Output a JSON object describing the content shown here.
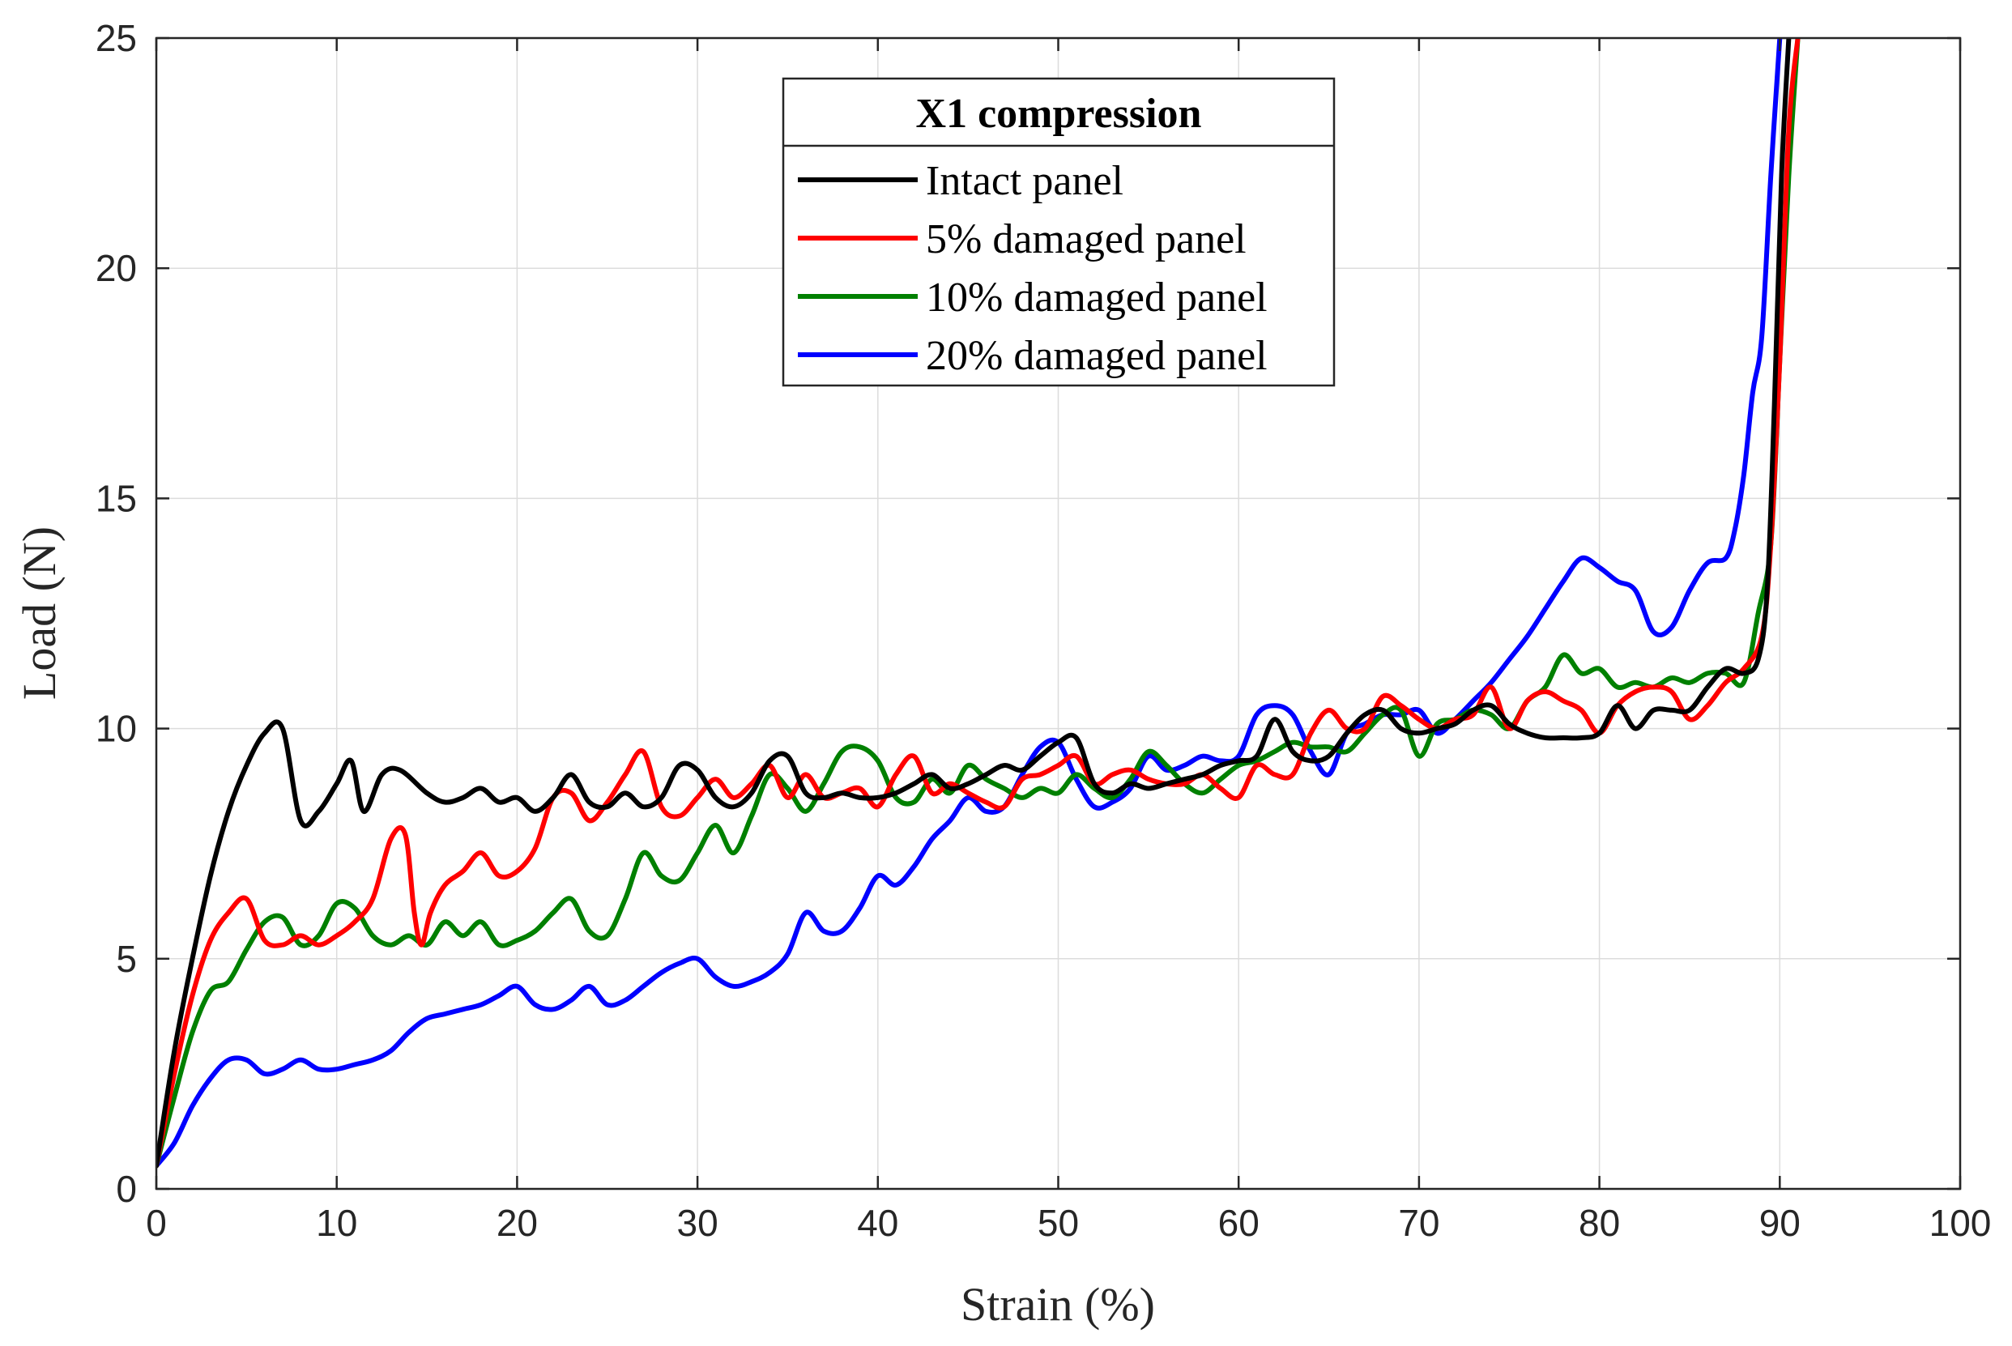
{
  "chart_data": {
    "type": "line",
    "title": "",
    "xlabel": "Strain (%)",
    "ylabel": "Load (N)",
    "xlim": [
      0,
      100
    ],
    "ylim": [
      0,
      25
    ],
    "xticks": [
      "0",
      "10",
      "20",
      "30",
      "40",
      "50",
      "60",
      "70",
      "80",
      "90",
      "100"
    ],
    "yticks": [
      "0",
      "5",
      "10",
      "15",
      "20",
      "25"
    ],
    "grid": true,
    "legend": {
      "title": "X1 compression",
      "placement": "top-center"
    },
    "series": [
      {
        "name": "Intact panel",
        "color": "#000000",
        "x": [
          0,
          1,
          2,
          3,
          4,
          5,
          6,
          7,
          8,
          9,
          10,
          10.8,
          11.5,
          12.5,
          13.5,
          15,
          16,
          17,
          18,
          19,
          20,
          21,
          22,
          23,
          24,
          25,
          26,
          27,
          28,
          29,
          30,
          31,
          32,
          33,
          34,
          35,
          36,
          37,
          38,
          39,
          40,
          41,
          42,
          43,
          44,
          45,
          46,
          47,
          48,
          49,
          50,
          51,
          52,
          53,
          54,
          55,
          56,
          57,
          58,
          59,
          60,
          61,
          62,
          63,
          64,
          65,
          66,
          67,
          68,
          69,
          70,
          71,
          72,
          73,
          74,
          75,
          76,
          77,
          78,
          79,
          80,
          81,
          82,
          83,
          84,
          85,
          86,
          87,
          88,
          88.8,
          89.3,
          89.7,
          90.1,
          90.5
        ],
        "values": [
          0.5,
          3.0,
          5.0,
          6.8,
          8.2,
          9.2,
          9.9,
          10.0,
          8.0,
          8.2,
          8.8,
          9.3,
          8.2,
          9.0,
          9.1,
          8.6,
          8.4,
          8.5,
          8.7,
          8.4,
          8.5,
          8.2,
          8.5,
          9.0,
          8.4,
          8.3,
          8.6,
          8.3,
          8.5,
          9.2,
          9.1,
          8.5,
          8.3,
          8.6,
          9.3,
          9.4,
          8.6,
          8.5,
          8.6,
          8.5,
          8.5,
          8.6,
          8.8,
          9.0,
          8.7,
          8.8,
          9.0,
          9.2,
          9.1,
          9.4,
          9.7,
          9.8,
          8.8,
          8.6,
          8.8,
          8.7,
          8.8,
          8.9,
          9.0,
          9.2,
          9.3,
          9.4,
          10.2,
          9.5,
          9.3,
          9.4,
          9.9,
          10.3,
          10.4,
          10.0,
          9.9,
          10.0,
          10.1,
          10.4,
          10.5,
          10.1,
          9.9,
          9.8,
          9.8,
          9.8,
          9.9,
          10.5,
          10.0,
          10.4,
          10.4,
          10.4,
          10.9,
          11.3,
          11.2,
          11.5,
          13.0,
          17.0,
          22.0,
          25.0
        ]
      },
      {
        "name": "5% damaged panel",
        "color": "#ff0000",
        "x": [
          0,
          1,
          2,
          3,
          4,
          5,
          6,
          7,
          8,
          9,
          10,
          11,
          12,
          13,
          13.8,
          14.3,
          14.7,
          15.2,
          16,
          17,
          18,
          19,
          20,
          21,
          22,
          23,
          24,
          25,
          26,
          27,
          28,
          29,
          30,
          31,
          32,
          33,
          34,
          35,
          36,
          37,
          38,
          39,
          40,
          41,
          42,
          43,
          44,
          45,
          46,
          47,
          48,
          49,
          50,
          51,
          52,
          53,
          54,
          55,
          56,
          57,
          58,
          59,
          60,
          61,
          62,
          63,
          64,
          65,
          66,
          67,
          68,
          69,
          70,
          71,
          72,
          73,
          74,
          75,
          76,
          77,
          78,
          79,
          80,
          81,
          82,
          83,
          84,
          85,
          86,
          87,
          88,
          89,
          89.5,
          90,
          90.5,
          91
        ],
        "values": [
          0.5,
          2.5,
          4.2,
          5.4,
          6.0,
          6.3,
          5.4,
          5.3,
          5.5,
          5.3,
          5.5,
          5.8,
          6.3,
          7.6,
          7.7,
          6.0,
          5.3,
          6.0,
          6.6,
          6.9,
          7.3,
          6.8,
          6.9,
          7.4,
          8.5,
          8.6,
          8.0,
          8.4,
          9.0,
          9.5,
          8.3,
          8.1,
          8.5,
          8.9,
          8.5,
          8.8,
          9.2,
          8.5,
          9.0,
          8.5,
          8.6,
          8.7,
          8.3,
          9.0,
          9.4,
          8.6,
          8.8,
          8.6,
          8.4,
          8.3,
          8.9,
          9.0,
          9.2,
          9.4,
          8.8,
          9.0,
          9.1,
          8.9,
          8.8,
          8.8,
          9.0,
          8.7,
          8.5,
          9.2,
          9.0,
          9.0,
          9.9,
          10.4,
          10.0,
          10.0,
          10.7,
          10.5,
          10.2,
          10.0,
          10.2,
          10.3,
          10.9,
          10.0,
          10.6,
          10.8,
          10.6,
          10.4,
          9.9,
          10.5,
          10.8,
          10.9,
          10.8,
          10.2,
          10.5,
          11.0,
          11.3,
          12.0,
          14.0,
          18.0,
          23.0,
          25.0
        ]
      },
      {
        "name": "10% damaged panel",
        "color": "#008000",
        "x": [
          0,
          1,
          2,
          3,
          4,
          5,
          6,
          7,
          8,
          9,
          10,
          11,
          12,
          13,
          14,
          15,
          16,
          17,
          18,
          19,
          20,
          21,
          22,
          23,
          24,
          25,
          26,
          27,
          28,
          29,
          30,
          31,
          32,
          33,
          34,
          35,
          36,
          37,
          38,
          39,
          40,
          41,
          42,
          43,
          44,
          45,
          46,
          47,
          48,
          49,
          50,
          51,
          52,
          53,
          54,
          55,
          56,
          57,
          58,
          59,
          60,
          61,
          62,
          63,
          64,
          65,
          66,
          67,
          68,
          69,
          70,
          71,
          72,
          73,
          74,
          75,
          76,
          77,
          78,
          79,
          80,
          81,
          82,
          83,
          84,
          85,
          86,
          87,
          88,
          88.8,
          89.5,
          90,
          90.5,
          91
        ],
        "values": [
          0.5,
          2.0,
          3.4,
          4.3,
          4.5,
          5.2,
          5.8,
          5.9,
          5.3,
          5.5,
          6.2,
          6.1,
          5.5,
          5.3,
          5.5,
          5.3,
          5.8,
          5.5,
          5.8,
          5.3,
          5.4,
          5.6,
          6.0,
          6.3,
          5.6,
          5.5,
          6.3,
          7.3,
          6.8,
          6.7,
          7.3,
          7.9,
          7.3,
          8.1,
          9.0,
          8.7,
          8.2,
          8.8,
          9.5,
          9.6,
          9.3,
          8.5,
          8.4,
          8.9,
          8.6,
          9.2,
          8.9,
          8.7,
          8.5,
          8.7,
          8.6,
          9.0,
          8.7,
          8.5,
          8.9,
          9.5,
          9.2,
          8.8,
          8.6,
          8.9,
          9.2,
          9.3,
          9.5,
          9.7,
          9.6,
          9.6,
          9.5,
          9.9,
          10.3,
          10.4,
          9.4,
          10.1,
          10.2,
          10.4,
          10.3,
          10.0,
          10.6,
          10.9,
          11.6,
          11.2,
          11.3,
          10.9,
          11.0,
          10.9,
          11.1,
          11.0,
          11.2,
          11.2,
          11.0,
          12.5,
          14.0,
          18.0,
          22.0,
          25.0
        ]
      },
      {
        "name": "20% damaged panel",
        "color": "#0000ff",
        "x": [
          0,
          1,
          2,
          3,
          4,
          5,
          6,
          7,
          8,
          9,
          10,
          11,
          12,
          13,
          14,
          15,
          16,
          17,
          18,
          19,
          20,
          21,
          22,
          23,
          24,
          25,
          26,
          27,
          28,
          29,
          30,
          31,
          32,
          33,
          34,
          35,
          36,
          37,
          38,
          39,
          40,
          41,
          42,
          43,
          44,
          45,
          46,
          47,
          48,
          49,
          50,
          51,
          52,
          53,
          54,
          55,
          56,
          57,
          58,
          59,
          60,
          61,
          62,
          63,
          64,
          65,
          66,
          67,
          68,
          69,
          70,
          71,
          72,
          73,
          74,
          75,
          76,
          77,
          78,
          79,
          80,
          81,
          82,
          83,
          84,
          85,
          86,
          87,
          87.5,
          88,
          88.5,
          89,
          89.5,
          90
        ],
        "values": [
          0.5,
          1.0,
          1.8,
          2.4,
          2.8,
          2.8,
          2.5,
          2.6,
          2.8,
          2.6,
          2.6,
          2.7,
          2.8,
          3.0,
          3.4,
          3.7,
          3.8,
          3.9,
          4.0,
          4.2,
          4.4,
          4.0,
          3.9,
          4.1,
          4.4,
          4.0,
          4.1,
          4.4,
          4.7,
          4.9,
          5.0,
          4.6,
          4.4,
          4.5,
          4.7,
          5.1,
          6.0,
          5.6,
          5.6,
          6.1,
          6.8,
          6.6,
          7.0,
          7.6,
          8.0,
          8.5,
          8.2,
          8.3,
          9.0,
          9.6,
          9.7,
          8.9,
          8.3,
          8.4,
          8.7,
          9.4,
          9.1,
          9.2,
          9.4,
          9.3,
          9.4,
          10.3,
          10.5,
          10.3,
          9.5,
          9.0,
          9.9,
          10.1,
          10.3,
          10.3,
          10.4,
          9.9,
          10.2,
          10.6,
          11.0,
          11.5,
          12.0,
          12.6,
          13.2,
          13.7,
          13.5,
          13.2,
          13.0,
          12.1,
          12.2,
          13.0,
          13.6,
          13.7,
          14.3,
          15.5,
          17.3,
          18.5,
          22.0,
          25.0
        ]
      }
    ]
  }
}
